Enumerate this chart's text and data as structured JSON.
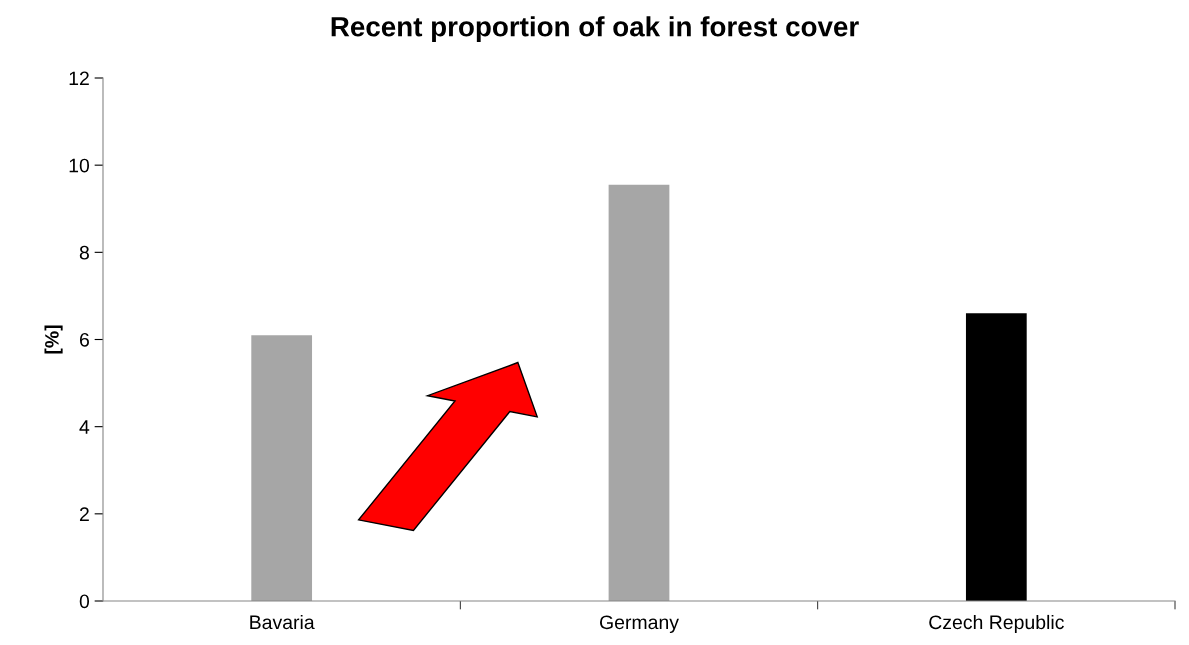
{
  "chart_data": {
    "type": "bar",
    "title": "Recent proportion of oak in forest cover",
    "ylabel": "[%]",
    "categories": [
      "Bavaria",
      "Germany",
      "Czech Republic"
    ],
    "values": [
      6.1,
      9.55,
      6.6
    ],
    "colors": [
      "#a6a6a6",
      "#a6a6a6",
      "#000000"
    ],
    "ylim": [
      0,
      12
    ],
    "yticks": [
      0,
      2,
      4,
      6,
      8,
      10,
      12
    ],
    "grid": false,
    "legend": false
  }
}
